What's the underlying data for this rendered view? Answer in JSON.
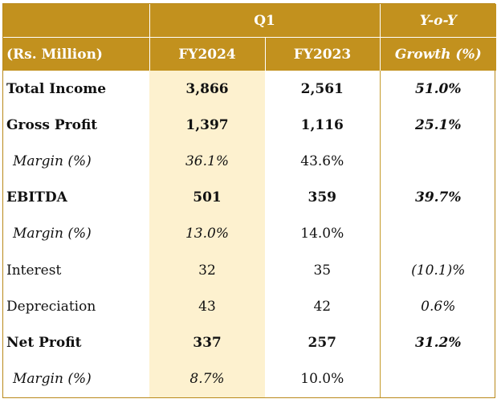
{
  "header": {
    "period": "Q1",
    "yoy_top": "Y-o-Y",
    "unit_label": "(Rs. Million)",
    "col_fy2024": "FY2024",
    "col_fy2023": "FY2023",
    "yoy_bottom": "Growth (%)"
  },
  "rows": [
    {
      "label": "Total Income",
      "fy2024": "3,866",
      "fy2023": "2,561",
      "yoy": "51.0%"
    },
    {
      "label": "Gross Profit",
      "fy2024": "1,397",
      "fy2023": "1,116",
      "yoy": "25.1%"
    },
    {
      "label": "Margin (%)",
      "fy2024": "36.1%",
      "fy2023": "43.6%",
      "yoy": ""
    },
    {
      "label": "EBITDA",
      "fy2024": "501",
      "fy2023": "359",
      "yoy": "39.7%"
    },
    {
      "label": "Margin (%)",
      "fy2024": "13.0%",
      "fy2023": "14.0%",
      "yoy": ""
    },
    {
      "label": "Interest",
      "fy2024": "32",
      "fy2023": "35",
      "yoy": "(10.1)%"
    },
    {
      "label": "Depreciation",
      "fy2024": "43",
      "fy2023": "42",
      "yoy": "0.6%"
    },
    {
      "label": "Net Profit",
      "fy2024": "337",
      "fy2023": "257",
      "yoy": "31.2%"
    },
    {
      "label": "Margin (%)",
      "fy2024": "8.7%",
      "fy2023": "10.0%",
      "yoy": ""
    }
  ],
  "colors": {
    "header_bg": "#c2911e",
    "highlight_col_bg": "#fdf1cf",
    "border": "#b9891a"
  }
}
